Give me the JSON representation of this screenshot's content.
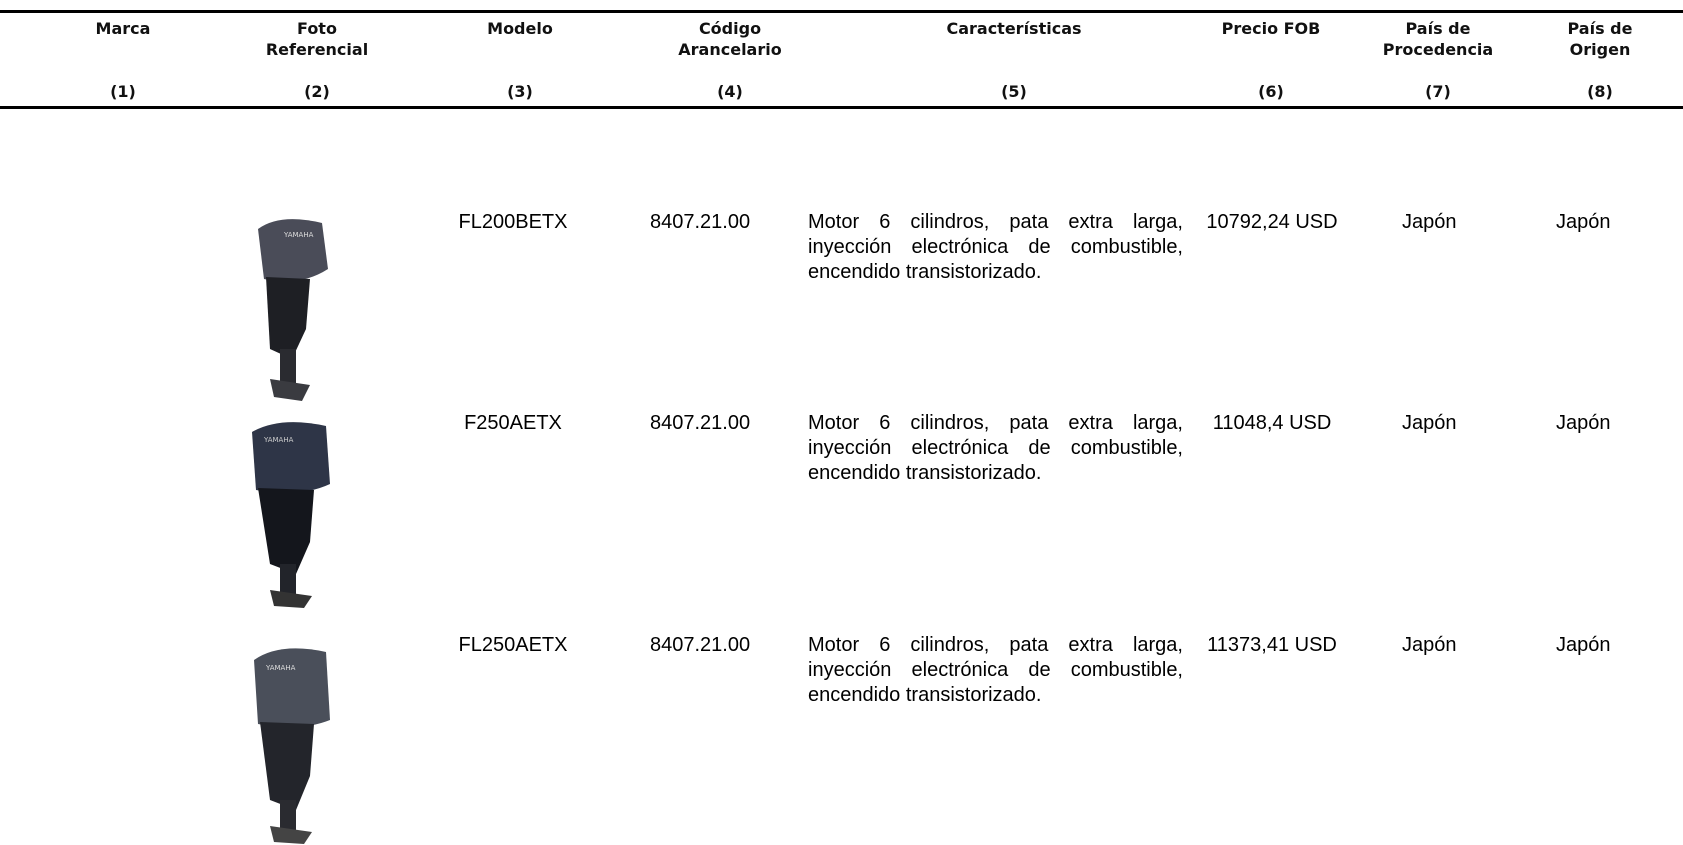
{
  "table": {
    "header": [
      {
        "lines": [
          "Marca"
        ],
        "number": "(1)"
      },
      {
        "lines": [
          "Foto",
          "Referencial"
        ],
        "number": "(2)"
      },
      {
        "lines": [
          "Modelo"
        ],
        "number": "(3)"
      },
      {
        "lines": [
          "Código",
          "Arancelario"
        ],
        "number": "(4)"
      },
      {
        "lines": [
          "Características"
        ],
        "number": "(5)"
      },
      {
        "lines": [
          "Precio FOB"
        ],
        "number": "(6)"
      },
      {
        "lines": [
          "País de",
          "Procedencia"
        ],
        "number": "(7)"
      },
      {
        "lines": [
          "País de",
          "Origen"
        ],
        "number": "(8)"
      }
    ],
    "rows": [
      {
        "modelo": "FL200BETX",
        "codigo": "8407.21.00",
        "caracteristicas": "Motor 6 cilindros, pata extra larga, inyección electrónica de combustible, encendido transistorizado.",
        "precio": "10792,24 USD",
        "procedencia": "Japón",
        "origen": "Japón"
      },
      {
        "modelo": "F250AETX",
        "codigo": "8407.21.00",
        "caracteristicas": "Motor 6 cilindros, pata extra larga, inyección electrónica de combustible, encendido transistorizado.",
        "precio": "11048,4 USD",
        "procedencia": "Japón",
        "origen": "Japón"
      },
      {
        "modelo": "FL250AETX",
        "codigo": "8407.21.00",
        "caracteristicas": "Motor 6 cilindros, pata extra larga, inyección electrónica de combustible, encendido transistorizado.",
        "precio": "11373,41 USD",
        "procedencia": "Japón",
        "origen": "Japón"
      }
    ]
  }
}
